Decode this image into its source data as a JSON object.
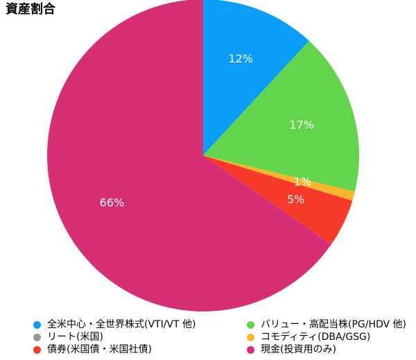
{
  "title": "資産割合",
  "chart_data": {
    "type": "pie",
    "title": "資産割合",
    "slices": [
      {
        "label": "全米中心・全世界株式(VTI/VT 他)",
        "value": 12,
        "display": "12%",
        "color": "#0a9ef8"
      },
      {
        "label": "バリュー・高配当株(PG/HDV 他)",
        "value": 17,
        "display": "17%",
        "color": "#62d54c"
      },
      {
        "label": "リート(米国)",
        "value": 0,
        "display": "",
        "color": "#999999"
      },
      {
        "label": "コモディティ(DBA/GSG)",
        "value": 1,
        "display": "1%",
        "color": "#f8b62d"
      },
      {
        "label": "債券(米国債・米国社債)",
        "value": 5,
        "display": "5%",
        "color": "#f73a2a"
      },
      {
        "label": "現金(投資用のみ)",
        "value": 66,
        "display": "66%",
        "color": "#d62f76"
      }
    ],
    "legend_position": "bottom"
  }
}
